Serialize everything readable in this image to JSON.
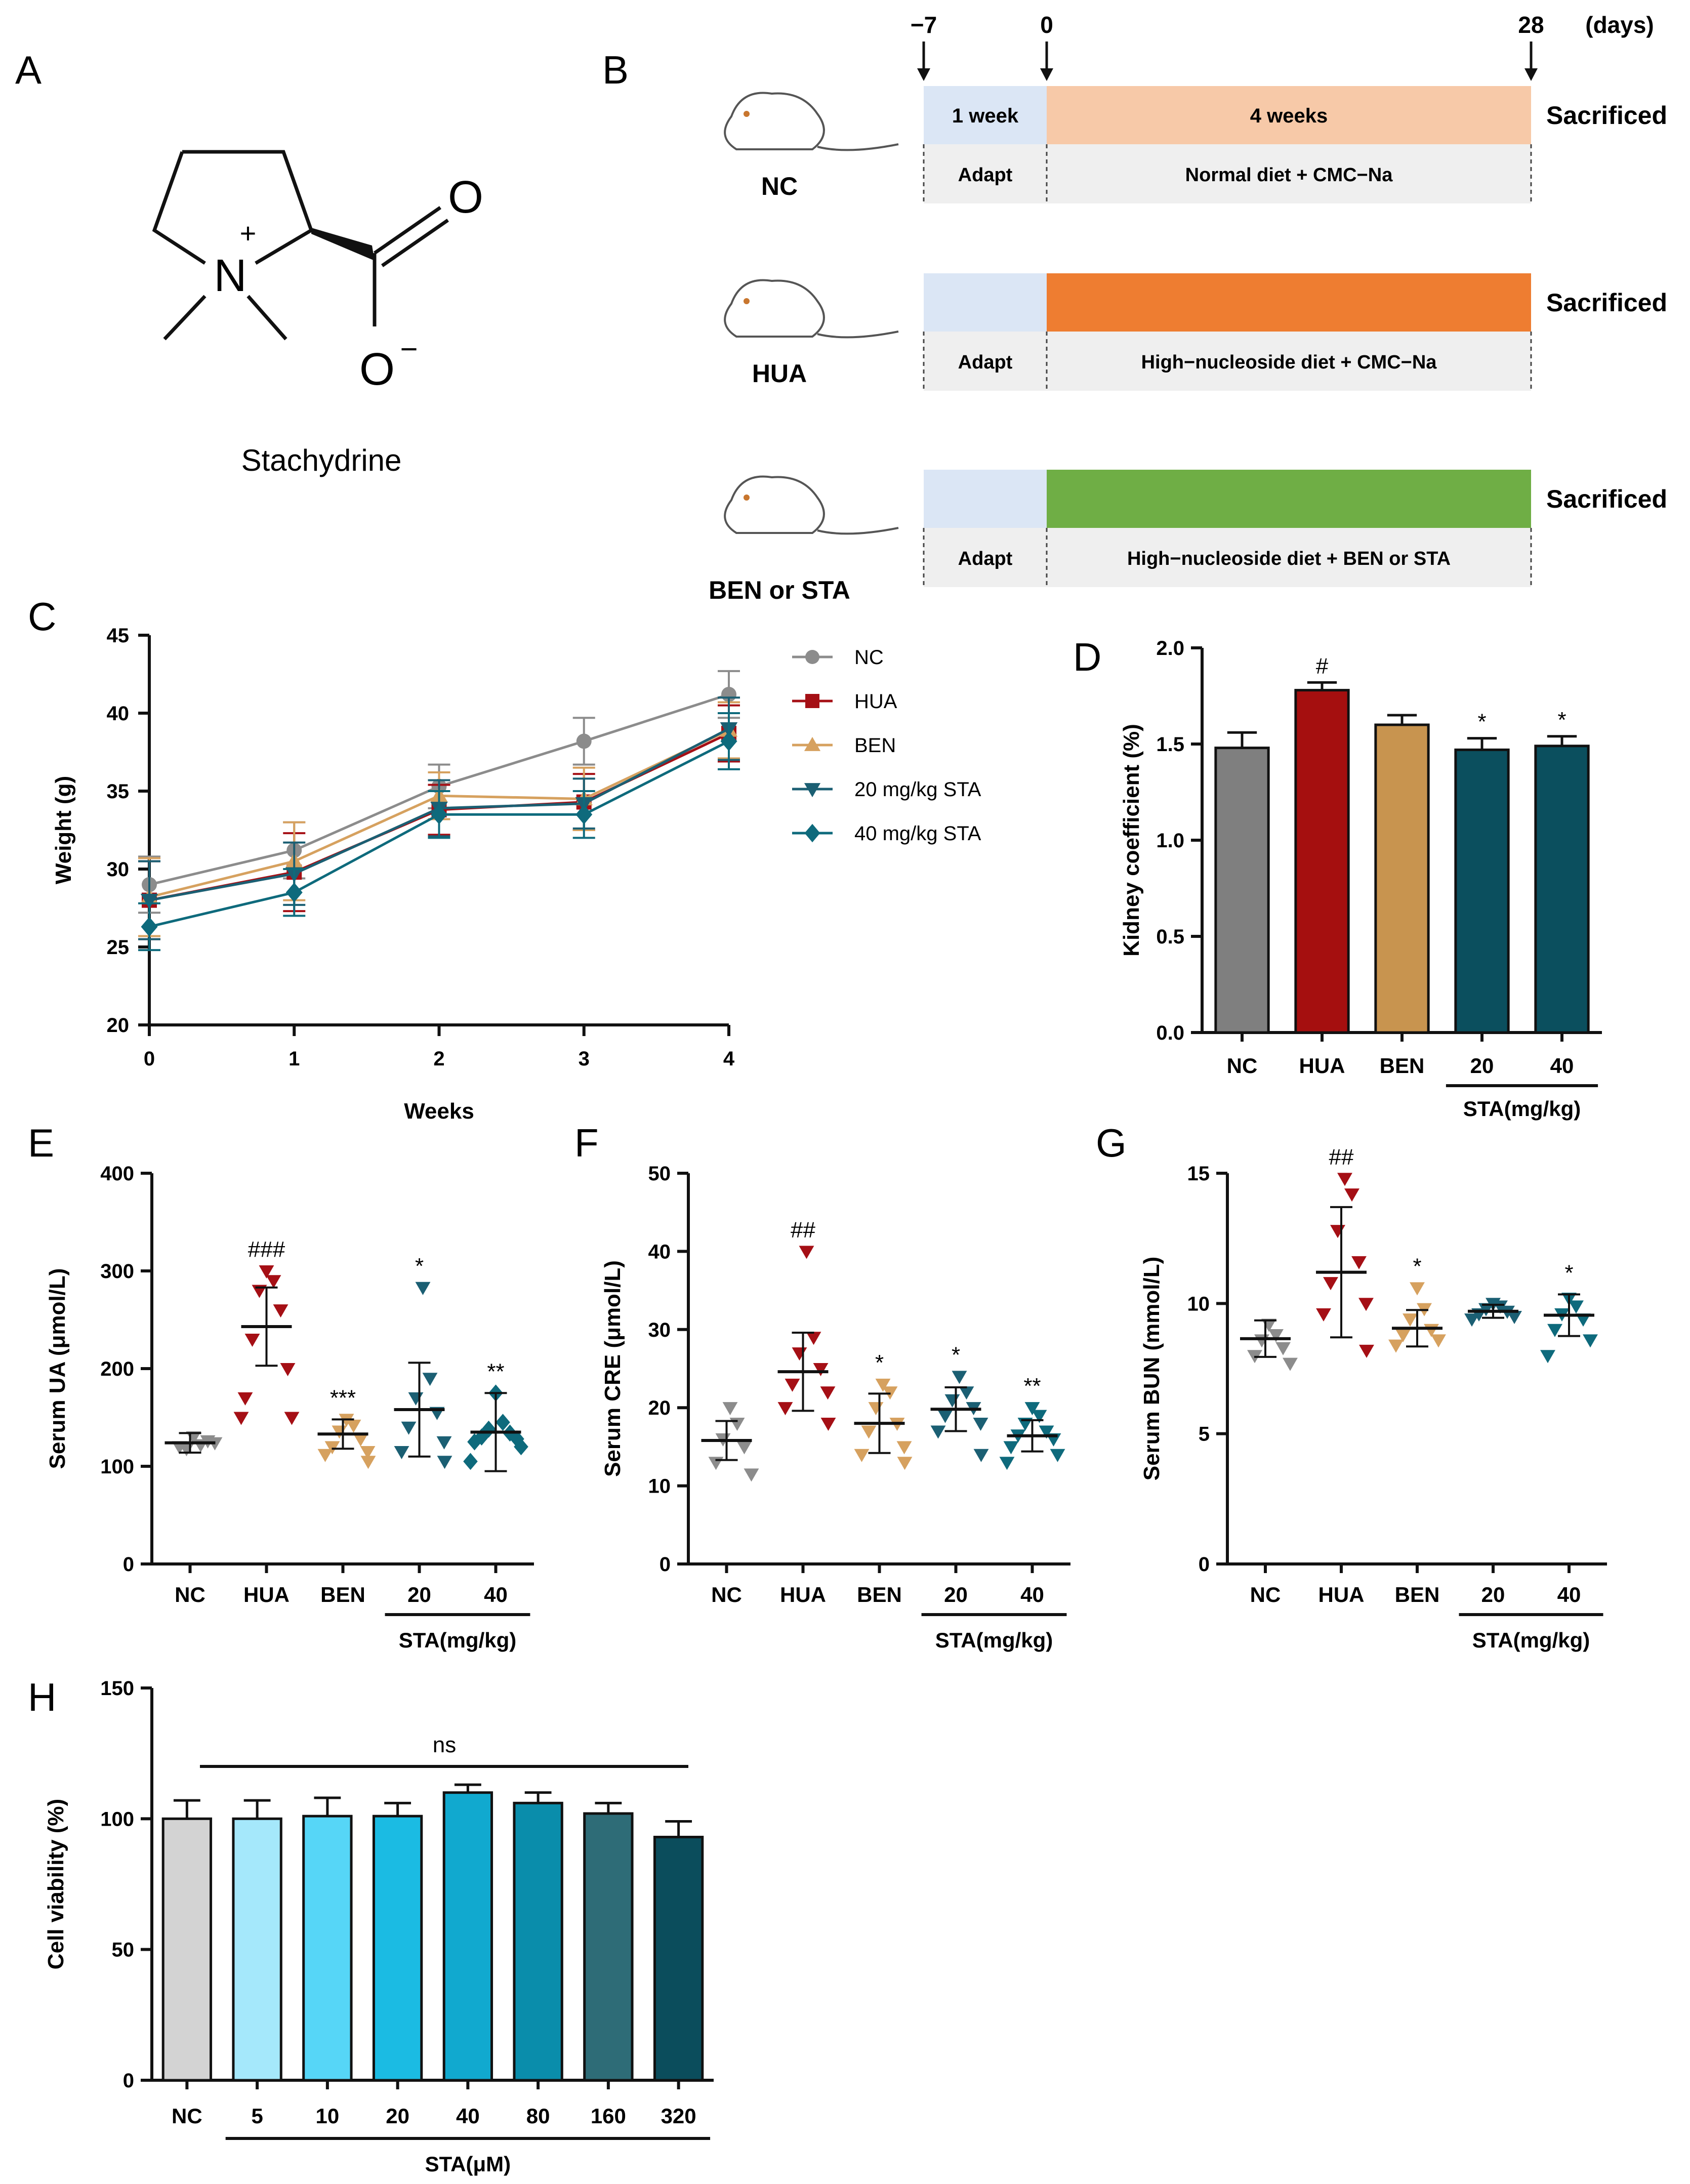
{
  "panel_labels": [
    "A",
    "B",
    "C",
    "D",
    "E",
    "F",
    "G",
    "H"
  ],
  "panel_a": {
    "compound_name": "Stachydrine",
    "atoms": {
      "N": "N",
      "O_double": "O",
      "O_minus": "O",
      "plus": "+",
      "minus": "−"
    }
  },
  "panel_b": {
    "days": {
      "start": "−7",
      "zero": "0",
      "end": "28",
      "unit": "(days)"
    },
    "period_labels": {
      "adapt_len": "1 week",
      "treat_len": "4 weeks"
    },
    "sacrificed": "Sacrificed",
    "groups": [
      {
        "name": "NC",
        "adapt": "Adapt",
        "treatment": "Normal diet + CMC−Na",
        "color": "#f7c9a8",
        "adapt_color": "#dbe6f5"
      },
      {
        "name": "HUA",
        "adapt": "Adapt",
        "treatment": "High−nucleoside diet + CMC−Na",
        "color": "#ee7d31",
        "adapt_color": "#dbe6f5"
      },
      {
        "name": "BEN or STA",
        "adapt": "Adapt",
        "treatment": "High−nucleoside diet + BEN or STA",
        "color": "#6fae45",
        "adapt_color": "#dbe6f5"
      }
    ]
  },
  "chart_data": [
    {
      "id": "C",
      "type": "line",
      "title": "",
      "xlabel": "Weeks",
      "ylabel": "Weight (g)",
      "x": [
        0,
        1,
        2,
        3,
        4
      ],
      "xlim": [
        0,
        4
      ],
      "ylim": [
        20,
        45
      ],
      "yticks": [
        20,
        25,
        30,
        35,
        40,
        45
      ],
      "legend_position": "top-right",
      "series": [
        {
          "name": "NC",
          "color": "#8c8c8c",
          "marker": "circle",
          "values": [
            29.0,
            31.2,
            35.3,
            38.2,
            41.2
          ],
          "err": [
            1.8,
            1.8,
            1.4,
            1.5,
            1.5
          ]
        },
        {
          "name": "HUA",
          "color": "#a50f15",
          "marker": "square",
          "values": [
            28.0,
            29.8,
            33.8,
            34.3,
            38.7
          ],
          "err": [
            2.5,
            2.5,
            1.6,
            1.8,
            1.8
          ]
        },
        {
          "name": "BEN",
          "color": "#d6a15f",
          "marker": "triangle-up",
          "values": [
            28.2,
            30.5,
            34.7,
            34.5,
            38.9
          ],
          "err": [
            2.5,
            2.5,
            1.5,
            2.0,
            1.8
          ]
        },
        {
          "name": "20 mg/kg STA",
          "color": "#1b5f73",
          "marker": "triangle-down",
          "values": [
            28.0,
            29.7,
            33.9,
            34.2,
            39.0
          ],
          "err": [
            2.5,
            2.0,
            1.8,
            1.6,
            2.0
          ]
        },
        {
          "name": "40 mg/kg STA",
          "color": "#0e6a7c",
          "marker": "diamond",
          "values": [
            26.3,
            28.5,
            33.5,
            33.5,
            38.2
          ],
          "err": [
            1.5,
            1.5,
            1.5,
            1.5,
            1.8
          ]
        }
      ]
    },
    {
      "id": "D",
      "type": "bar",
      "ylabel": "Kidney coefficient (%)",
      "categories": [
        "NC",
        "HUA",
        "BEN",
        "20",
        "40"
      ],
      "group_label": "STA(mg/kg)",
      "values": [
        1.48,
        1.78,
        1.6,
        1.47,
        1.49
      ],
      "err": [
        0.08,
        0.04,
        0.05,
        0.06,
        0.05
      ],
      "annotations": [
        "",
        "#",
        "",
        "*",
        "*"
      ],
      "colors": [
        "#7f7f7f",
        "#a50f0f",
        "#c8944f",
        "#0b4f5e",
        "#0b4f5e"
      ],
      "ylim": [
        0.0,
        2.0
      ],
      "yticks": [
        "0.0",
        "0.5",
        "1.0",
        "1.5",
        "2.0"
      ]
    },
    {
      "id": "E",
      "type": "scatter",
      "ylabel": "Serum UA (μmol/L)",
      "categories": [
        "NC",
        "HUA",
        "BEN",
        "20",
        "40"
      ],
      "group_label": "STA(mg/kg)",
      "ylim": [
        0,
        400
      ],
      "yticks": [
        0,
        100,
        200,
        300,
        400
      ],
      "groups": [
        {
          "marker": "triangle-down",
          "color": "#8c8c8c",
          "points": [
            130,
            122,
            118,
            126,
            120,
            124
          ],
          "mean": 124,
          "sd": 10,
          "annotation": ""
        },
        {
          "marker": "triangle-down",
          "color": "#a50f15",
          "points": [
            300,
            290,
            280,
            260,
            230,
            200,
            170,
            150,
            150
          ],
          "mean": 243,
          "sd": 40,
          "annotation": "###"
        },
        {
          "marker": "triangle-down",
          "color": "#d6a15f",
          "points": [
            148,
            142,
            136,
            128,
            120,
            115,
            112,
            105
          ],
          "mean": 133,
          "sd": 15,
          "annotation": "***"
        },
        {
          "marker": "triangle-down",
          "color": "#1b5f73",
          "points": [
            283,
            190,
            170,
            155,
            140,
            125,
            115,
            105
          ],
          "mean": 158,
          "sd": 48,
          "annotation": "*"
        },
        {
          "marker": "diamond",
          "color": "#0e6a7c",
          "points": [
            175,
            145,
            138,
            134,
            130,
            128,
            125,
            120,
            105
          ],
          "mean": 135,
          "sd": 40,
          "annotation": "**"
        }
      ]
    },
    {
      "id": "F",
      "type": "scatter",
      "ylabel": "Serum CRE (μmol/L)",
      "categories": [
        "NC",
        "HUA",
        "BEN",
        "20",
        "40"
      ],
      "group_label": "STA(mg/kg)",
      "ylim": [
        0,
        50
      ],
      "yticks": [
        0,
        10,
        20,
        30,
        40,
        50
      ],
      "groups": [
        {
          "marker": "triangle-down",
          "color": "#8c8c8c",
          "points": [
            20,
            18,
            16,
            15,
            13,
            11.5
          ],
          "mean": 15.8,
          "sd": 2.5,
          "annotation": ""
        },
        {
          "marker": "triangle-down",
          "color": "#a50f15",
          "points": [
            40,
            29,
            27,
            25,
            23,
            22,
            20,
            18
          ],
          "mean": 24.6,
          "sd": 5,
          "annotation": "##"
        },
        {
          "marker": "triangle-down",
          "color": "#d6a15f",
          "points": [
            23,
            22,
            20,
            18,
            17,
            15,
            14,
            13
          ],
          "mean": 18.0,
          "sd": 3.8,
          "annotation": "*"
        },
        {
          "marker": "triangle-down",
          "color": "#1b5f73",
          "points": [
            24,
            22,
            21,
            20,
            19,
            18,
            17,
            14
          ],
          "mean": 19.8,
          "sd": 2.8,
          "annotation": "*"
        },
        {
          "marker": "triangle-down",
          "color": "#0e6a7c",
          "points": [
            20,
            19,
            18,
            17,
            16.5,
            16,
            15,
            14,
            13
          ],
          "mean": 16.4,
          "sd": 2.0,
          "annotation": "**"
        }
      ]
    },
    {
      "id": "G",
      "type": "scatter",
      "ylabel": "Serum BUN (mmol/L)",
      "categories": [
        "NC",
        "HUA",
        "BEN",
        "20",
        "40"
      ],
      "group_label": "STA(mg/kg)",
      "ylim": [
        0,
        15
      ],
      "yticks": [
        0,
        5,
        10,
        15
      ],
      "groups": [
        {
          "marker": "triangle-down",
          "color": "#8c8c8c",
          "points": [
            9.2,
            8.8,
            8.6,
            8.3,
            8.0,
            7.7
          ],
          "mean": 8.65,
          "sd": 0.7,
          "annotation": ""
        },
        {
          "marker": "triangle-down",
          "color": "#a50f15",
          "points": [
            14.8,
            14.2,
            12.8,
            11.6,
            10.8,
            10.0,
            9.6,
            8.2
          ],
          "mean": 11.2,
          "sd": 2.5,
          "annotation": "##"
        },
        {
          "marker": "triangle-down",
          "color": "#d6a15f",
          "points": [
            10.6,
            9.8,
            9.4,
            9.0,
            8.8,
            8.6,
            8.4
          ],
          "mean": 9.05,
          "sd": 0.7,
          "annotation": "*"
        },
        {
          "marker": "triangle-down",
          "color": "#1b5f73",
          "points": [
            10.0,
            9.9,
            9.8,
            9.7,
            9.6,
            9.5,
            9.4
          ],
          "mean": 9.7,
          "sd": 0.25,
          "annotation": ""
        },
        {
          "marker": "triangle-down",
          "color": "#0e6a7c",
          "points": [
            10.2,
            9.9,
            9.6,
            9.4,
            9.0,
            8.6,
            8.0
          ],
          "mean": 9.55,
          "sd": 0.8,
          "annotation": "*"
        }
      ]
    },
    {
      "id": "H",
      "type": "bar",
      "ylabel": "Cell viability (%)",
      "categories": [
        "NC",
        "5",
        "10",
        "20",
        "40",
        "80",
        "160",
        "320"
      ],
      "group_label": "STA(μM)",
      "values": [
        100,
        100,
        101,
        101,
        110,
        106,
        102,
        93
      ],
      "err": [
        7,
        7,
        7,
        5,
        3,
        4,
        4,
        6
      ],
      "colors": [
        "#d3d3d3",
        "#a5e8fb",
        "#56d6f7",
        "#1bbbe3",
        "#11a9cf",
        "#0a8dab",
        "#2e6c77",
        "#0b4d5c"
      ],
      "ylim": [
        0,
        150
      ],
      "yticks": [
        0,
        50,
        100,
        150
      ],
      "annotation": "ns"
    }
  ]
}
